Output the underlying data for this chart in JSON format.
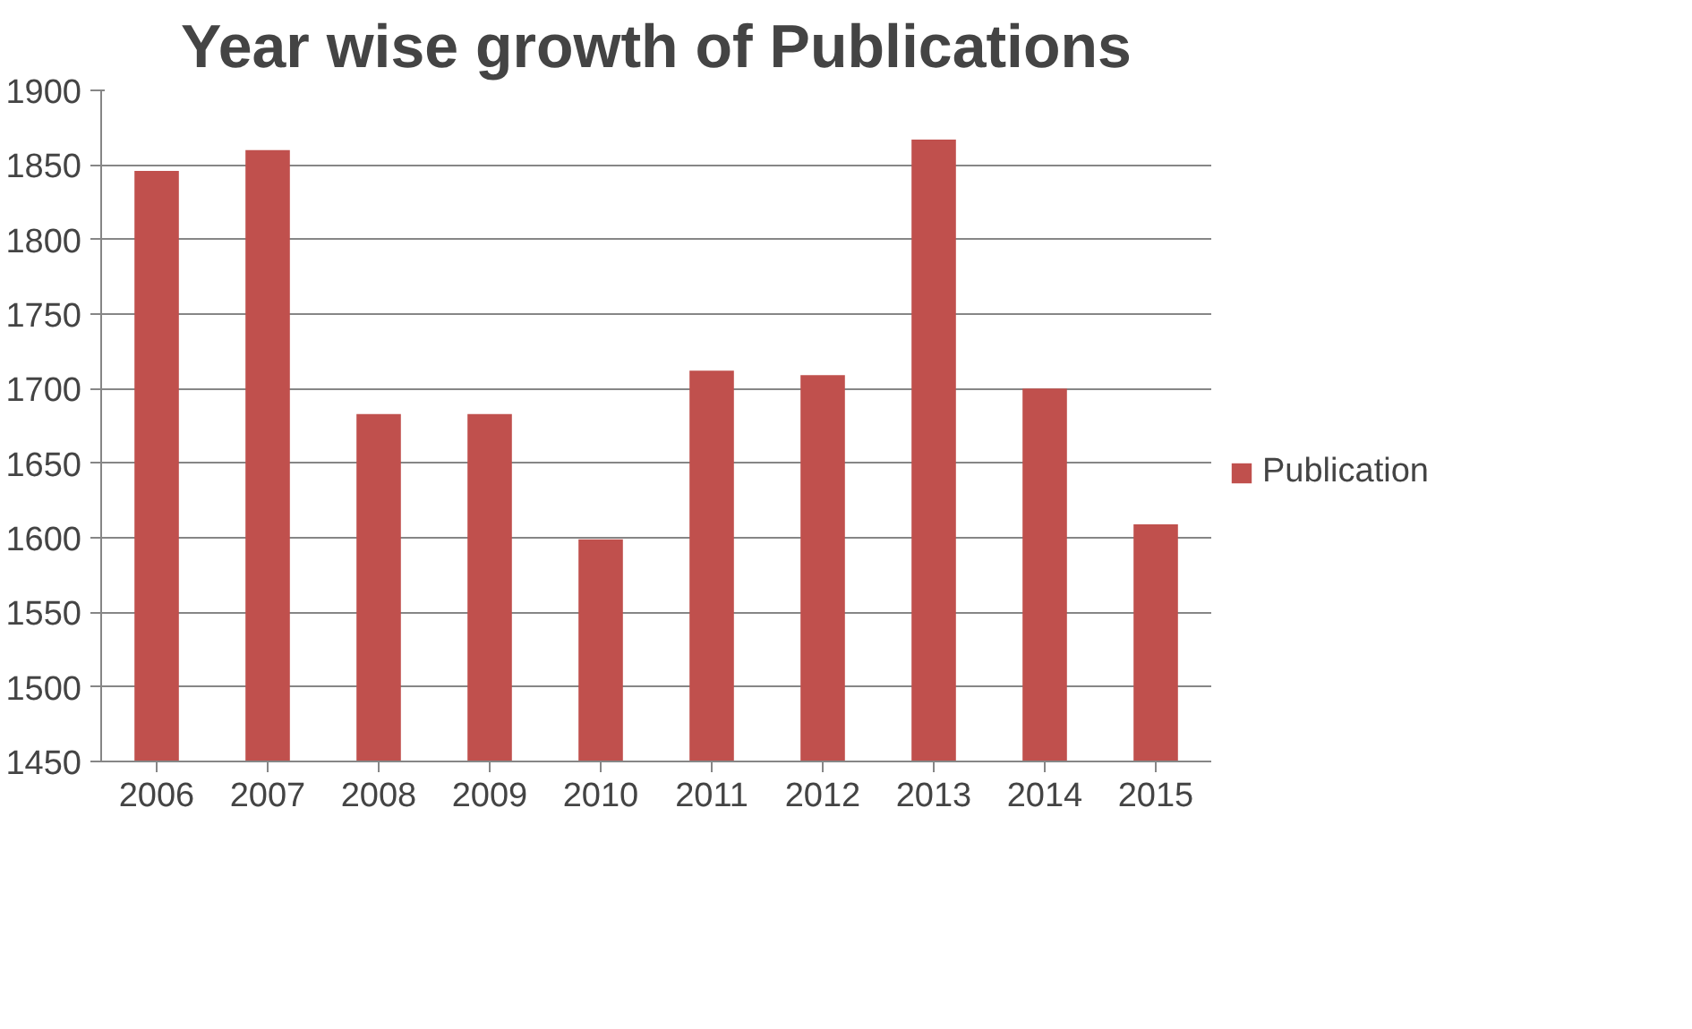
{
  "chart_data": {
    "type": "bar",
    "title": "Year wise growth of Publications",
    "categories": [
      "2006",
      "2007",
      "2008",
      "2009",
      "2010",
      "2011",
      "2012",
      "2013",
      "2014",
      "2015"
    ],
    "series": [
      {
        "name": "Publication",
        "color": "#c0504d",
        "values": [
          1846,
          1860,
          1683,
          1683,
          1599,
          1712,
          1709,
          1867,
          1700,
          1609
        ]
      }
    ],
    "ylim": [
      1450,
      1900
    ],
    "yticks": [
      1450,
      1500,
      1550,
      1600,
      1650,
      1700,
      1750,
      1800,
      1850,
      1900
    ],
    "grid": "y",
    "legend": "right"
  }
}
